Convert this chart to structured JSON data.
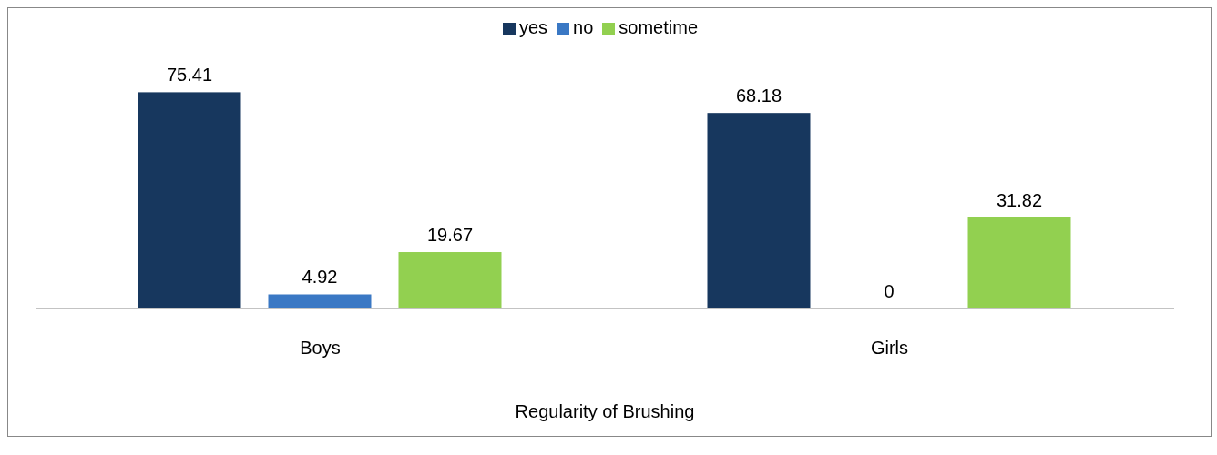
{
  "chart_data": {
    "type": "bar",
    "xlabel": "Regularity of Brushing",
    "categories": [
      "Boys",
      "Girls"
    ],
    "series": [
      {
        "name": "yes",
        "color": "#17375e",
        "values": [
          75.41,
          68.18
        ]
      },
      {
        "name": "no",
        "color": "#3a78c4",
        "values": [
          4.92,
          0
        ]
      },
      {
        "name": "sometime",
        "color": "#92d050",
        "values": [
          19.67,
          31.82
        ]
      }
    ],
    "data_labels": true,
    "legend": "top",
    "grid": false
  }
}
